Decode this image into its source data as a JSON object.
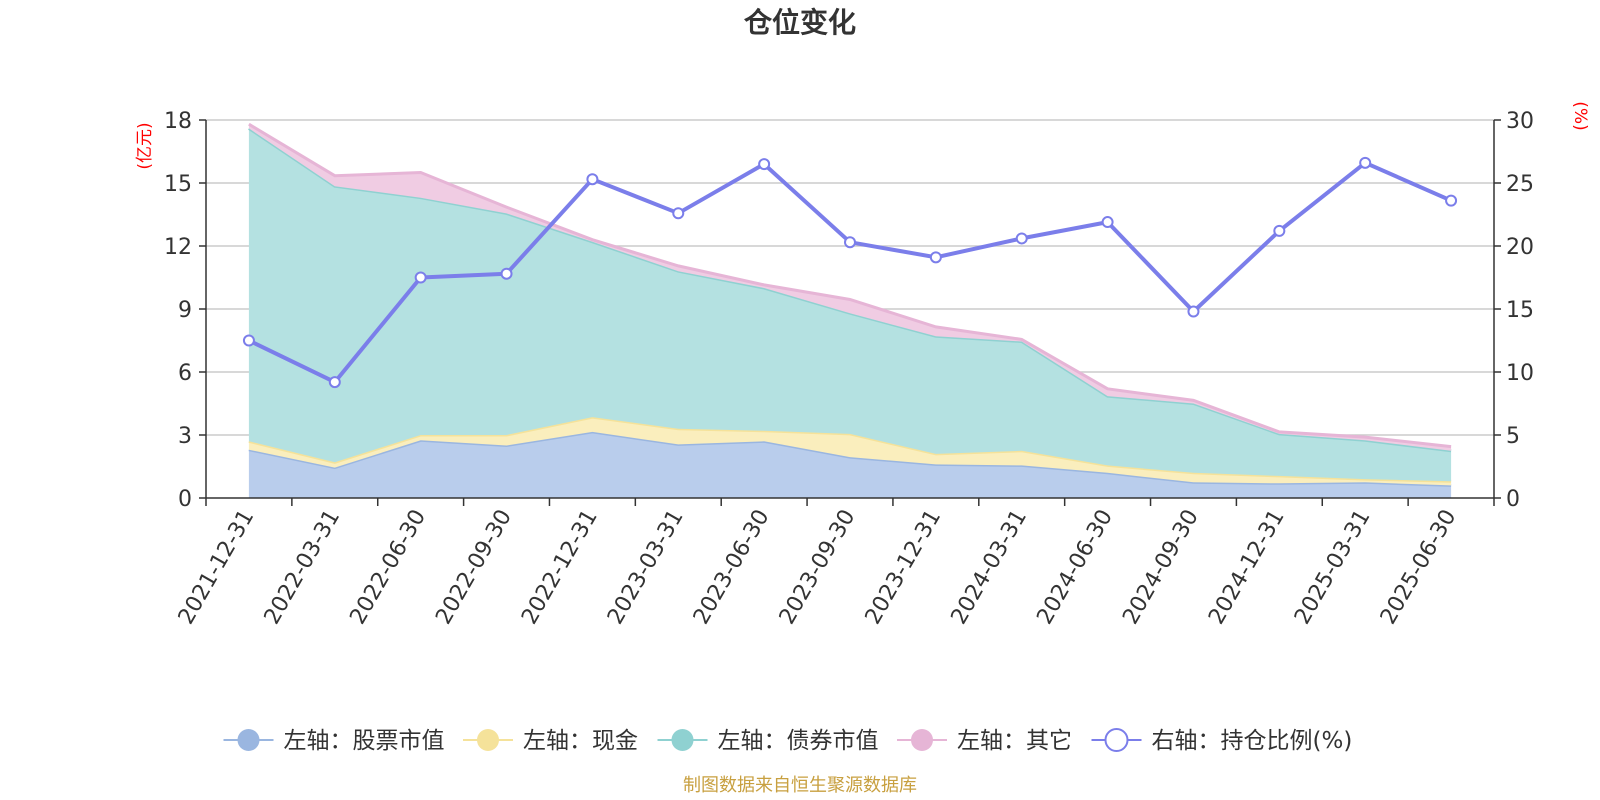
{
  "chart_data": {
    "type": "area",
    "title": "仓位变化",
    "source_text": "制图数据来自恒生聚源数据库",
    "left_axis": {
      "unit_label": "(亿元)",
      "ylim": [
        0,
        18
      ],
      "ticks": [
        0,
        3,
        6,
        9,
        12,
        15,
        18
      ]
    },
    "right_axis": {
      "unit_label": "(%)",
      "ylim": [
        0,
        30
      ],
      "ticks": [
        0,
        5,
        10,
        15,
        20,
        25,
        30
      ]
    },
    "grid": true,
    "legend_position": "bottom",
    "categories": [
      "2021-12-31",
      "2022-03-31",
      "2022-06-30",
      "2022-09-30",
      "2022-12-31",
      "2023-03-31",
      "2023-06-30",
      "2023-09-30",
      "2023-12-31",
      "2024-03-31",
      "2024-06-30",
      "2024-09-30",
      "2024-12-31",
      "2025-03-31",
      "2025-06-30"
    ],
    "series": [
      {
        "name": "左轴：股票市值",
        "axis": "left",
        "stacked": true,
        "color": "#9ab6e0",
        "fill": "#b9cdec",
        "values": [
          2.3,
          1.45,
          2.75,
          2.5,
          3.15,
          2.55,
          2.7,
          1.95,
          1.6,
          1.55,
          1.2,
          0.75,
          0.7,
          0.75,
          0.6
        ]
      },
      {
        "name": "左轴：现金",
        "axis": "left",
        "stacked": true,
        "color": "#f5e29a",
        "fill": "#faeebd",
        "values": [
          0.4,
          0.25,
          0.25,
          0.5,
          0.7,
          0.75,
          0.5,
          1.1,
          0.5,
          0.7,
          0.35,
          0.45,
          0.35,
          0.15,
          0.2
        ]
      },
      {
        "name": "左轴：债券市值",
        "axis": "left",
        "stacked": true,
        "color": "#8fd1d1",
        "fill": "#b4e1e1",
        "values": [
          14.9,
          13.15,
          11.3,
          10.55,
          8.35,
          7.5,
          6.8,
          5.75,
          5.6,
          5.2,
          3.3,
          3.3,
          2.0,
          1.85,
          1.45
        ]
      },
      {
        "name": "左轴：其它",
        "axis": "left",
        "stacked": true,
        "color": "#e6b5d6",
        "fill": "#f0cce3",
        "values": [
          0.2,
          0.5,
          1.2,
          0.3,
          0.1,
          0.25,
          0.15,
          0.65,
          0.45,
          0.1,
          0.35,
          0.15,
          0.1,
          0.15,
          0.2
        ]
      },
      {
        "name": "右轴：持仓比例(%)",
        "axis": "right",
        "type": "line",
        "color": "#7b7eea",
        "values": [
          12.5,
          9.2,
          17.5,
          17.8,
          25.3,
          22.6,
          26.5,
          20.3,
          19.1,
          20.6,
          21.9,
          14.8,
          21.2,
          26.6,
          23.6
        ]
      }
    ]
  }
}
